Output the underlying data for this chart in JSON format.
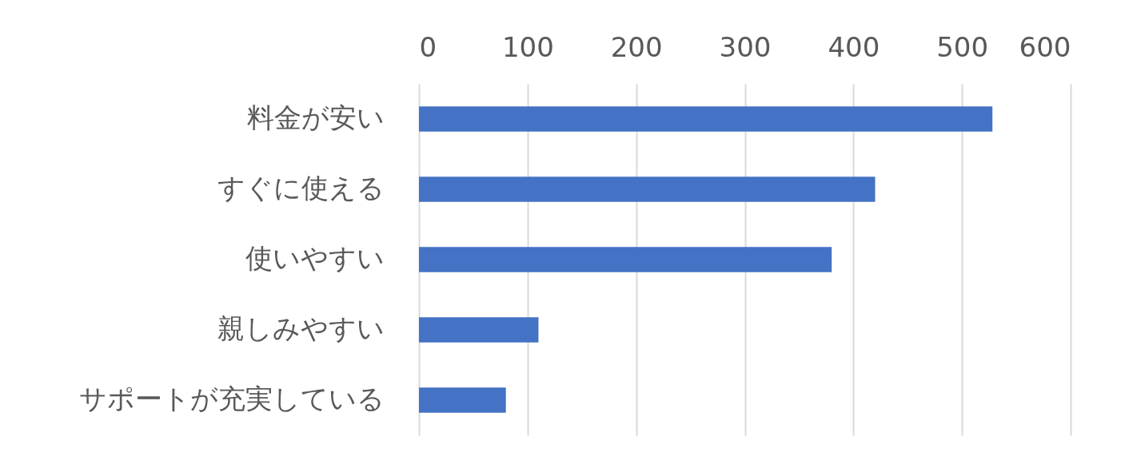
{
  "chart_data": {
    "type": "bar",
    "orientation": "horizontal",
    "categories": [
      "料金が安い",
      "すぐに使える",
      "使いやすい",
      "親しみやすい",
      "サポートが充実している"
    ],
    "values": [
      528,
      420,
      380,
      110,
      80
    ],
    "color": "#4472c4",
    "xlim": [
      0,
      600
    ],
    "xticks": [
      0,
      100,
      200,
      300,
      400,
      500,
      600
    ],
    "grid": "x"
  }
}
